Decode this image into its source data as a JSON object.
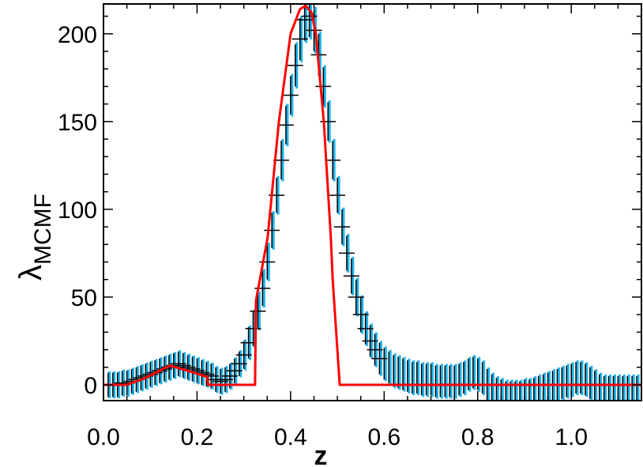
{
  "chart_data": {
    "type": "scatter",
    "title": "",
    "xlabel": "z",
    "ylabel": {
      "main": "λ",
      "subscript": "MCMF"
    },
    "xlim": [
      0.0,
      1.15
    ],
    "ylim": [
      -9,
      217
    ],
    "xticks": [
      "0.0",
      "0.2",
      "0.4",
      "0.6",
      "0.8",
      "1.0"
    ],
    "yticks": [
      "0",
      "50",
      "100",
      "150",
      "200"
    ],
    "grid": false,
    "legend": "none",
    "colors": {
      "points": "#000000",
      "error_bars": "#1fb4ec",
      "model": "#ff0000"
    },
    "points": {
      "x_start": 0.01,
      "x_step": 0.01,
      "y": [
        0,
        0,
        0,
        1,
        1,
        2,
        3,
        4,
        5,
        6,
        7,
        8,
        9,
        10,
        11,
        12,
        11,
        10,
        9,
        8,
        7,
        6,
        5,
        3,
        2,
        3,
        5,
        8,
        12,
        17,
        24,
        32,
        42,
        55,
        70,
        88,
        108,
        128,
        148,
        165,
        182,
        197,
        208,
        210,
        202,
        188,
        170,
        150,
        128,
        108,
        90,
        75,
        62,
        50,
        40,
        32,
        25,
        20,
        15,
        12,
        10,
        8,
        7,
        6,
        5,
        4,
        4,
        3,
        3,
        3,
        2,
        2,
        2,
        2,
        2,
        3,
        4,
        6,
        7,
        6,
        4,
        0,
        -3,
        -5,
        -6,
        -7,
        -7,
        -7,
        -7,
        -6,
        -6,
        -5,
        -4,
        -3,
        -2,
        -1,
        0,
        1,
        2,
        3,
        4,
        4,
        3,
        1,
        -1,
        -3,
        -4,
        -4,
        -4,
        -4,
        -4,
        -4,
        -4,
        -4,
        -4
      ],
      "err": [
        7,
        7,
        7,
        7,
        7,
        7,
        7,
        7,
        7,
        7,
        7,
        7,
        7,
        7,
        7,
        7,
        7,
        7,
        7,
        7,
        7,
        7,
        7,
        7,
        7,
        7,
        7,
        7,
        7,
        8,
        9,
        10,
        10,
        10,
        10,
        10,
        10,
        11,
        11,
        11,
        12,
        12,
        12,
        12,
        12,
        12,
        11,
        11,
        11,
        10,
        10,
        10,
        10,
        10,
        10,
        9,
        9,
        9,
        9,
        9,
        9,
        9,
        9,
        9,
        9,
        9,
        9,
        9,
        9,
        9,
        9,
        9,
        9,
        9,
        9,
        9,
        9,
        9,
        9,
        9,
        9,
        9,
        9,
        9,
        9,
        9,
        9,
        9,
        9,
        9,
        9,
        9,
        9,
        9,
        9,
        9,
        9,
        9,
        9,
        9,
        9,
        9,
        9,
        9,
        9,
        9,
        9,
        9,
        9,
        9,
        9,
        9,
        9,
        9,
        9
      ]
    },
    "model_curve": [
      [
        0,
        0
      ],
      [
        0.05,
        0
      ],
      [
        0.09,
        4
      ],
      [
        0.142,
        11
      ],
      [
        0.18,
        8
      ],
      [
        0.222,
        4.5
      ],
      [
        0.224,
        0
      ],
      [
        0.324,
        0
      ],
      [
        0.326,
        48
      ],
      [
        0.351,
        84
      ],
      [
        0.375,
        150
      ],
      [
        0.4,
        200
      ],
      [
        0.42,
        214
      ],
      [
        0.432,
        216
      ],
      [
        0.445,
        212
      ],
      [
        0.454,
        200
      ],
      [
        0.471,
        150
      ],
      [
        0.486,
        84
      ],
      [
        0.49,
        60
      ],
      [
        0.505,
        0
      ],
      [
        1.15,
        0
      ]
    ]
  }
}
